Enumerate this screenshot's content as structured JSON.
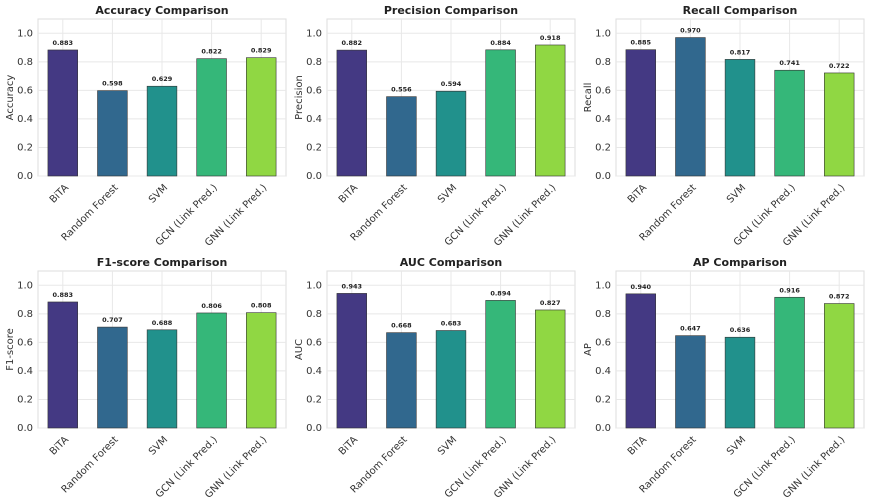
{
  "chart_data": [
    {
      "type": "bar",
      "title": "Accuracy Comparison",
      "ylabel": "Accuracy",
      "categories": [
        "BiTA",
        "Random Forest",
        "SVM",
        "GCN (Link Pred.)",
        "GNN (Link Pred.)"
      ],
      "values": [
        0.883,
        0.598,
        0.629,
        0.822,
        0.829
      ],
      "value_labels": [
        "0.883",
        "0.598",
        "0.629",
        "0.822",
        "0.829"
      ],
      "colors": [
        "#443983",
        "#31688e",
        "#21918c",
        "#35b779",
        "#90d743"
      ],
      "ylim": [
        0,
        1.1
      ],
      "yticks": [
        {
          "value": 0,
          "label": "0.0"
        },
        0.2,
        0.4,
        0.6,
        0.8,
        {
          "value": 1,
          "label": "1.0"
        }
      ],
      "grid": true
    },
    {
      "type": "bar",
      "title": "Precision Comparison",
      "ylabel": "Precision",
      "categories": [
        "BiTA",
        "Random Forest",
        "SVM",
        "GCN (Link Pred.)",
        "GNN (Link Pred.)"
      ],
      "values": [
        0.882,
        0.556,
        0.594,
        0.884,
        0.918
      ],
      "value_labels": [
        "0.882",
        "0.556",
        "0.594",
        "0.884",
        "0.918"
      ],
      "colors": [
        "#443983",
        "#31688e",
        "#21918c",
        "#35b779",
        "#90d743"
      ],
      "ylim": [
        0,
        1.1
      ],
      "yticks": [
        {
          "value": 0,
          "label": "0.0"
        },
        0.2,
        0.4,
        0.6,
        0.8,
        {
          "value": 1,
          "label": "1.0"
        }
      ],
      "grid": true
    },
    {
      "type": "bar",
      "title": "Recall Comparison",
      "ylabel": "Recall",
      "categories": [
        "BiTA",
        "Random Forest",
        "SVM",
        "GCN (Link Pred.)",
        "GNN (Link Pred.)"
      ],
      "values": [
        0.885,
        0.97,
        0.817,
        0.741,
        0.722
      ],
      "value_labels": [
        "0.885",
        "0.970",
        "0.817",
        "0.741",
        "0.722"
      ],
      "colors": [
        "#443983",
        "#31688e",
        "#21918c",
        "#35b779",
        "#90d743"
      ],
      "ylim": [
        0,
        1.1
      ],
      "yticks": [
        {
          "value": 0,
          "label": "0.0"
        },
        0.2,
        0.4,
        0.6,
        0.8,
        {
          "value": 1,
          "label": "1.0"
        }
      ],
      "grid": true
    },
    {
      "type": "bar",
      "title": "F1-score Comparison",
      "ylabel": "F1-score",
      "categories": [
        "BiTA",
        "Random Forest",
        "SVM",
        "GCN (Link Pred.)",
        "GNN (Link Pred.)"
      ],
      "values": [
        0.883,
        0.707,
        0.688,
        0.806,
        0.808
      ],
      "value_labels": [
        "0.883",
        "0.707",
        "0.688",
        "0.806",
        "0.808"
      ],
      "colors": [
        "#443983",
        "#31688e",
        "#21918c",
        "#35b779",
        "#90d743"
      ],
      "ylim": [
        0,
        1.1
      ],
      "yticks": [
        {
          "value": 0,
          "label": "0.0"
        },
        0.2,
        0.4,
        0.6,
        0.8,
        {
          "value": 1,
          "label": "1.0"
        }
      ],
      "grid": true
    },
    {
      "type": "bar",
      "title": "AUC Comparison",
      "ylabel": "AUC",
      "categories": [
        "BiTA",
        "Random Forest",
        "SVM",
        "GCN (Link Pred.)",
        "GNN (Link Pred.)"
      ],
      "values": [
        0.943,
        0.668,
        0.683,
        0.894,
        0.827
      ],
      "value_labels": [
        "0.943",
        "0.668",
        "0.683",
        "0.894",
        "0.827"
      ],
      "colors": [
        "#443983",
        "#31688e",
        "#21918c",
        "#35b779",
        "#90d743"
      ],
      "ylim": [
        0,
        1.1
      ],
      "yticks": [
        {
          "value": 0,
          "label": "0.0"
        },
        0.2,
        0.4,
        0.6,
        0.8,
        {
          "value": 1,
          "label": "1.0"
        }
      ],
      "grid": true
    },
    {
      "type": "bar",
      "title": "AP Comparison",
      "ylabel": "AP",
      "categories": [
        "BiTA",
        "Random Forest",
        "SVM",
        "GCN (Link Pred.)",
        "GNN (Link Pred.)"
      ],
      "values": [
        0.94,
        0.647,
        0.636,
        0.916,
        0.872
      ],
      "value_labels": [
        "0.940",
        "0.647",
        "0.636",
        "0.916",
        "0.872"
      ],
      "colors": [
        "#443983",
        "#31688e",
        "#21918c",
        "#35b779",
        "#90d743"
      ],
      "ylim": [
        0,
        1.1
      ],
      "yticks": [
        {
          "value": 0,
          "label": "0.0"
        },
        0.2,
        0.4,
        0.6,
        0.8,
        {
          "value": 1,
          "label": "1.0"
        }
      ],
      "grid": true
    }
  ]
}
